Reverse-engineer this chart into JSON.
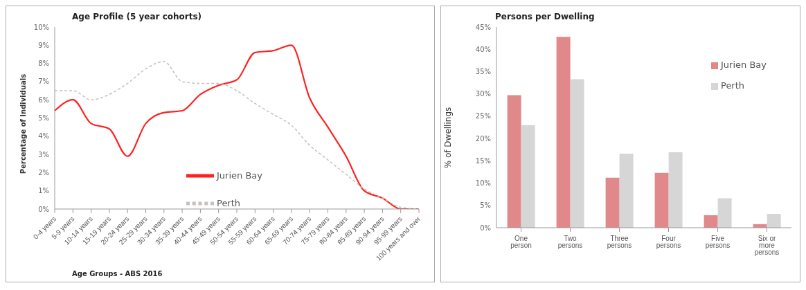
{
  "chart_data": [
    {
      "type": "line",
      "title": "Age Profile (5 year cohorts)",
      "xlabel": "Age Groups - ABS 2016",
      "ylabel": "Percentage of Individuals",
      "categories": [
        "0-4 years",
        "5-9 years",
        "10-14 years",
        "15-19 years",
        "20-24 years",
        "25-29 years",
        "30-34 years",
        "35-39 years",
        "40-44 years",
        "45-49 years",
        "50-54 years",
        "55-59 years",
        "60-64 years",
        "65-69 years",
        "70-74 years",
        "75-79 years",
        "80-84 years",
        "85-89 years",
        "90-94 years",
        "95-99 years",
        "100 years and over"
      ],
      "series": [
        {
          "name": "Jurien Bay",
          "color": "#ff2020",
          "line_style": "solid",
          "values": [
            5.4,
            6.0,
            4.7,
            4.4,
            2.9,
            4.7,
            5.3,
            5.4,
            6.3,
            6.8,
            7.1,
            8.6,
            8.7,
            9.0,
            6.1,
            4.5,
            2.9,
            1.0,
            0.6,
            0.0,
            0.0
          ]
        },
        {
          "name": "Perth",
          "color": "#c8c0bc",
          "line_style": "dashed",
          "values": [
            6.5,
            6.5,
            6.0,
            6.3,
            6.9,
            7.7,
            8.1,
            7.0,
            6.9,
            6.9,
            6.5,
            5.8,
            5.2,
            4.6,
            3.5,
            2.7,
            1.9,
            1.1,
            0.6,
            0.1,
            0.0
          ]
        }
      ],
      "ylim": [
        0,
        10
      ],
      "yticks": [
        {
          "value": 0,
          "label": "0%"
        },
        {
          "value": 1,
          "label": "1%"
        },
        {
          "value": 2,
          "label": "2%"
        },
        {
          "value": 3,
          "label": "3%"
        },
        {
          "value": 4,
          "label": "4%"
        },
        {
          "value": 5,
          "label": "5%"
        },
        {
          "value": 6,
          "label": "6%"
        },
        {
          "value": 7,
          "label": "7%"
        },
        {
          "value": 8,
          "label": "8%"
        },
        {
          "value": 9,
          "label": "9%"
        },
        {
          "value": 10,
          "label": "10%"
        }
      ],
      "grid": false,
      "legend": "center",
      "marker": "none"
    },
    {
      "type": "bar",
      "title": "Persons per Dwelling",
      "ylabel": "% of Dwellings",
      "categories": [
        "One person",
        "Two persons",
        "Three persons",
        "Four persons",
        "Five persons",
        "Six or more persons"
      ],
      "series": [
        {
          "name": "Jurien Bay",
          "color": "#e0888a",
          "values": [
            29.7,
            42.8,
            11.2,
            12.3,
            2.8,
            0.8
          ]
        },
        {
          "name": "Perth",
          "color": "#d6d6d6",
          "values": [
            23.0,
            33.3,
            16.6,
            16.9,
            6.6,
            3.1
          ]
        }
      ],
      "ylim": [
        0,
        45
      ],
      "yticks": [
        {
          "value": 0,
          "label": "0%"
        },
        {
          "value": 5,
          "label": "5%"
        },
        {
          "value": 10,
          "label": "10%"
        },
        {
          "value": 15,
          "label": "15%"
        },
        {
          "value": 20,
          "label": "20%"
        },
        {
          "value": 25,
          "label": "25%"
        },
        {
          "value": 30,
          "label": "30%"
        },
        {
          "value": 35,
          "label": "35%"
        },
        {
          "value": 40,
          "label": "40%"
        },
        {
          "value": 45,
          "label": "45%"
        }
      ],
      "grid": false,
      "legend": "top right"
    }
  ]
}
